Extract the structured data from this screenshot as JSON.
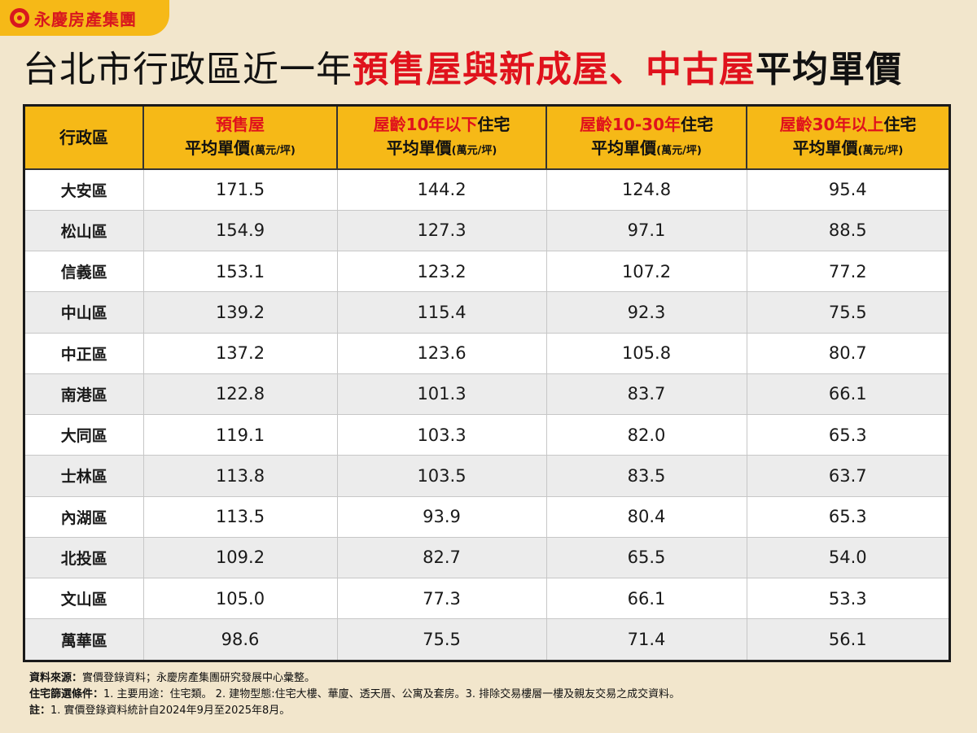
{
  "brand": {
    "name": "永慶房產集團"
  },
  "title": {
    "part1": "台北市行政區近一年",
    "part2": "預售屋與新成屋、中古屋",
    "part3": "平均單價"
  },
  "colors": {
    "accent_yellow": "#f6b917",
    "accent_red": "#e0121c",
    "background": "#f2e6cc"
  },
  "chart_data": {
    "type": "table",
    "columns": [
      {
        "label": "行政區"
      },
      {
        "label_red": "預售屋",
        "label_black": "",
        "line2": "平均單價",
        "unit": "(萬元/坪)"
      },
      {
        "label_red": "屋齡10年以下",
        "label_black": "住宅",
        "line2": "平均單價",
        "unit": "(萬元/坪)"
      },
      {
        "label_red": "屋齡10-30年",
        "label_black": "住宅",
        "line2": "平均單價",
        "unit": "(萬元/坪)"
      },
      {
        "label_red": "屋齡30年以上",
        "label_black": "住宅",
        "line2": "平均單價",
        "unit": "(萬元/坪)"
      }
    ],
    "rows": [
      {
        "district": "大安區",
        "values": [
          "171.5",
          "144.2",
          "124.8",
          "95.4"
        ]
      },
      {
        "district": "松山區",
        "values": [
          "154.9",
          "127.3",
          "97.1",
          "88.5"
        ]
      },
      {
        "district": "信義區",
        "values": [
          "153.1",
          "123.2",
          "107.2",
          "77.2"
        ]
      },
      {
        "district": "中山區",
        "values": [
          "139.2",
          "115.4",
          "92.3",
          "75.5"
        ]
      },
      {
        "district": "中正區",
        "values": [
          "137.2",
          "123.6",
          "105.8",
          "80.7"
        ]
      },
      {
        "district": "南港區",
        "values": [
          "122.8",
          "101.3",
          "83.7",
          "66.1"
        ]
      },
      {
        "district": "大同區",
        "values": [
          "119.1",
          "103.3",
          "82.0",
          "65.3"
        ]
      },
      {
        "district": "士林區",
        "values": [
          "113.8",
          "103.5",
          "83.5",
          "63.7"
        ]
      },
      {
        "district": "內湖區",
        "values": [
          "113.5",
          "93.9",
          "80.4",
          "65.3"
        ]
      },
      {
        "district": "北投區",
        "values": [
          "109.2",
          "82.7",
          "65.5",
          "54.0"
        ]
      },
      {
        "district": "文山區",
        "values": [
          "105.0",
          "77.3",
          "66.1",
          "53.3"
        ]
      },
      {
        "district": "萬華區",
        "values": [
          "98.6",
          "75.5",
          "71.4",
          "56.1"
        ]
      }
    ]
  },
  "footnotes": {
    "source_label": "資料來源：",
    "source_text": "實價登錄資料；永慶房產集團研究發展中心彙整。",
    "filter_label": "住宅篩選條件：",
    "filter_text": "1. 主要用途：住宅類。 2. 建物型態:住宅大樓、華廈、透天厝、公寓及套房。3. 排除交易樓層一樓及親友交易之成交資料。",
    "note_label": "註：",
    "note_text": "1. 實價登錄資料統計自2024年9月至2025年8月。"
  }
}
